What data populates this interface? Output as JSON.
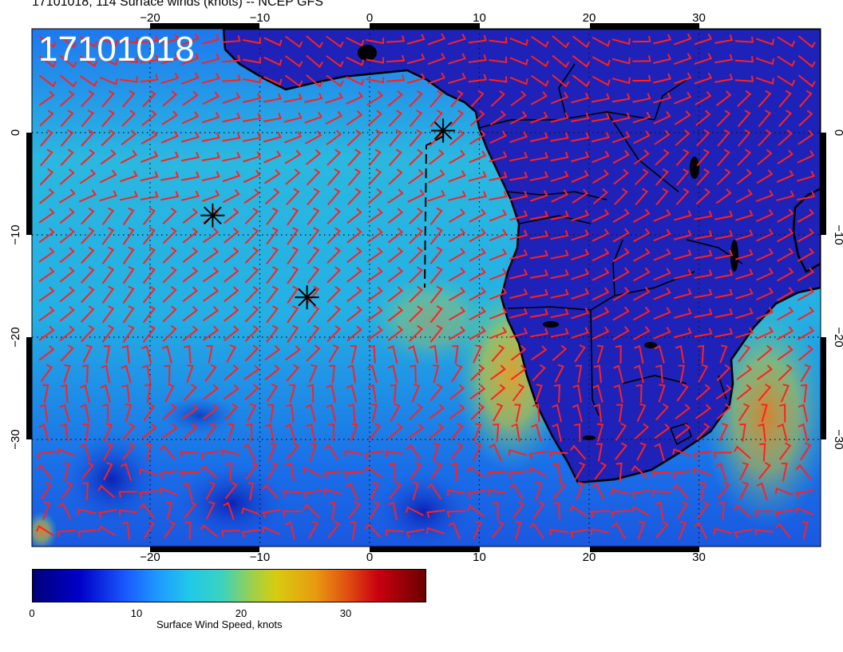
{
  "title": "17101018, 114 Surface winds (knots) -- NCEP GFS",
  "stamp": "17101018",
  "map": {
    "lon_top_labels": [
      "−20",
      "−10",
      "0",
      "10",
      "20",
      "30"
    ],
    "lon_bottom_labels": [
      "−20",
      "−10",
      "0",
      "10",
      "20",
      "30"
    ],
    "lat_left_labels": [
      "0",
      "−10",
      "−20",
      "−30"
    ],
    "lat_right_labels": [
      "0",
      "−10",
      "−20",
      "−30"
    ],
    "gridline_style": "dotted",
    "barb_color": "#ff2020",
    "coast_color": "#000000",
    "markers": [
      {
        "symbol": "asterisk",
        "lon": 6.7,
        "lat": 0.2
      },
      {
        "symbol": "asterisk",
        "lon": -14.3,
        "lat": -8.1
      },
      {
        "symbol": "asterisk",
        "lon": -5.7,
        "lat": -16.1
      }
    ]
  },
  "colorbar": {
    "ticks": [
      "0",
      "10",
      "20",
      "30"
    ],
    "label": "Surface Wind Speed, knots",
    "colors": [
      "#00007a",
      "#0000c8",
      "#1a5cff",
      "#1e9bff",
      "#22c8e8",
      "#3ad2c0",
      "#9fd04a",
      "#d8cc10",
      "#e89a10",
      "#e05010",
      "#c80010",
      "#6a0000"
    ]
  }
}
